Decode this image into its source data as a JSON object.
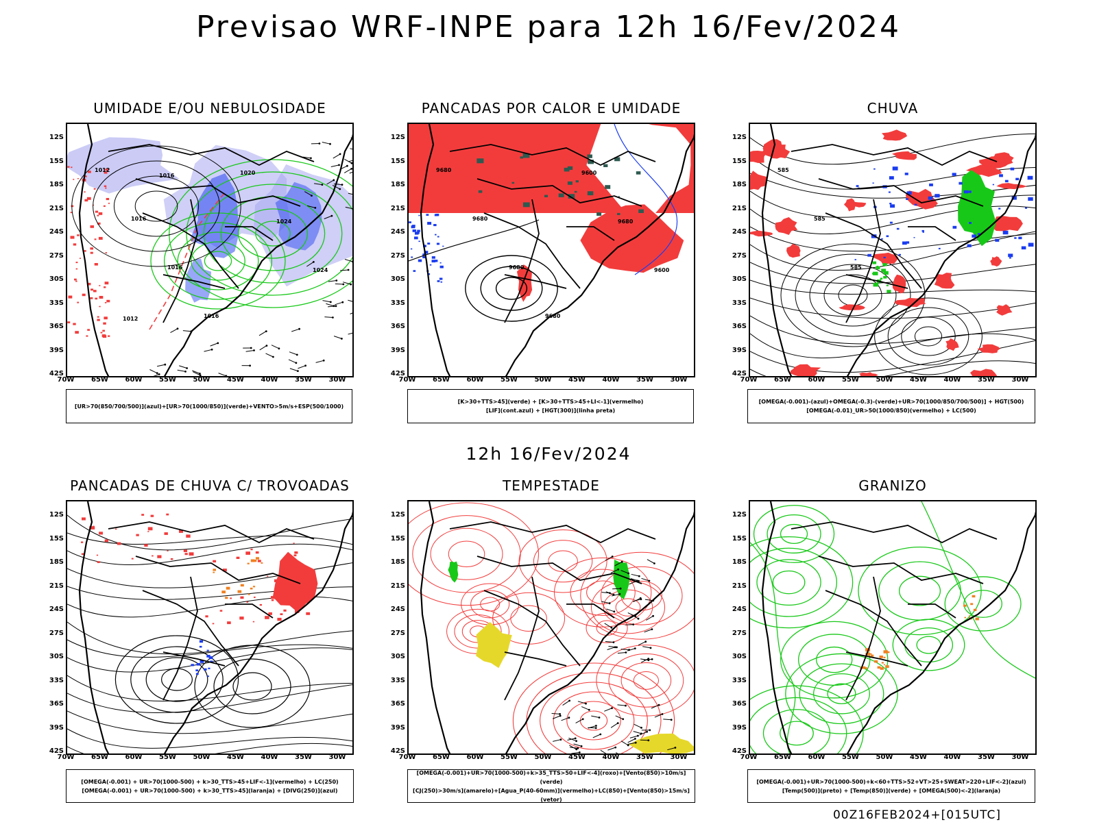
{
  "title": "Previsao WRF-INPE  para 12h 16/Fev/2024",
  "mid_title": "12h 16/Fev/2024",
  "footer": "00Z16FEB2024+[015UTC]",
  "lat_labels": [
    "12S",
    "15S",
    "18S",
    "21S",
    "24S",
    "27S",
    "30S",
    "33S",
    "36S",
    "39S",
    "42S"
  ],
  "lon_labels": [
    "70W",
    "65W",
    "60W",
    "55W",
    "50W",
    "45W",
    "40W",
    "35W",
    "30W"
  ],
  "panels": [
    {
      "title": "UMIDADE E/OU NEBULOSIDADE",
      "legend": [
        "[UR>70(850/700/500)](azul)+[UR>70(1000/850)](verde)+VENTO>5m/s+ESP(500/1000)"
      ],
      "contour_labels": [
        "1012",
        "1016",
        "1016",
        "1016",
        "1020",
        "1024",
        "1024",
        "1012",
        "1016"
      ]
    },
    {
      "title": "PANCADAS POR CALOR E UMIDADE",
      "legend": [
        "[K>30+TTS>45](verde) + [K>30+TTS>45+LI<-1](vermelho)",
        "[LIF](cont.azul) + [HGT(300)](linha preta)"
      ],
      "contour_labels": [
        "9680",
        "9680",
        "9680",
        "9680",
        "9600",
        "9680",
        "9600"
      ]
    },
    {
      "title": "CHUVA",
      "legend": [
        "[OMEGA(-0.001)-(azul)+OMEGA(-0.3)-(verde)+UR>70(1000/850/700/500)] + HGT(500)",
        "[OMEGA(-0.01)_UR>50(1000/850)(vermelho) + LC(500)"
      ],
      "contour_labels": [
        "585",
        "585",
        "585"
      ]
    },
    {
      "title": "PANCADAS DE CHUVA C/ TROVOADAS",
      "legend": [
        "[OMEGA(-0.001) + UR>70(1000-500) + k>30_TTS>45+LIF<-1](vermelho) + LC(250)",
        "[OMEGA(-0.001) + UR>70(1000-500) + k>30_TTS>45](laranja) + [DIVG(250)](azul)"
      ],
      "contour_labels": []
    },
    {
      "title": "TEMPESTADE",
      "legend": [
        "[OMEGA(-0.001)+UR>70(1000-500)+k>35_TTS>50+LIF<-4](roxo)+[Vento(850)>10m/s](verde)",
        "[CJ(250)>30m/s](amarelo)+[Agua_P(40-60mm)](vermelho)+LC(850)+[Vento(850)>15m/s](vetor)"
      ],
      "contour_labels": []
    },
    {
      "title": "GRANIZO",
      "legend": [
        "[OMEGA(-0.001)+UR>70(1000-500)+k<60+TTS>52+VT>25+SWEAT>220+LIF<-2](azul)",
        "[Temp(500)](preto) + [Temp(850)](verde) + [OMEGA(500)<-2](laranja)"
      ],
      "contour_labels": []
    }
  ],
  "colors": {
    "red": "#f23c3c",
    "blue": "#1a3cf0",
    "green": "#18c818",
    "lavender": "#a8a8f0",
    "yellow": "#e6d82a",
    "orange": "#f08020",
    "darkteal": "#2e5a50"
  }
}
